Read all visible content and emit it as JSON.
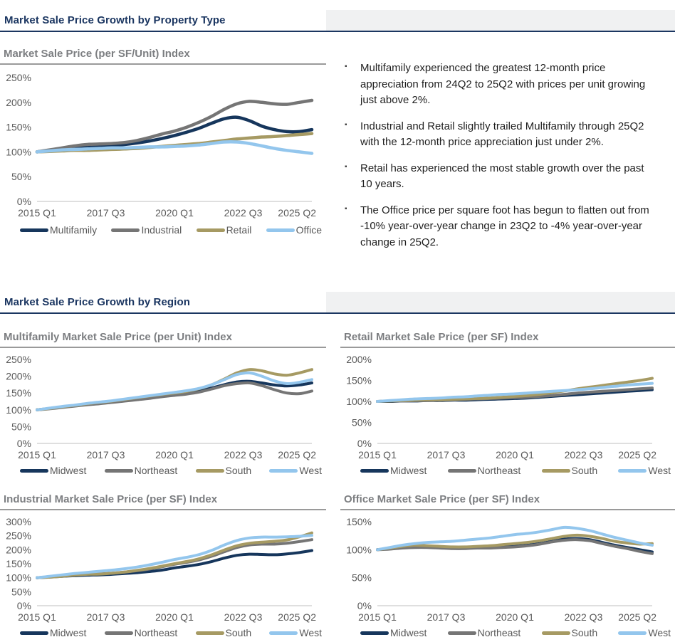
{
  "colors": {
    "header_navy": "#1B3661",
    "subtitle_gray": "#7C7E81",
    "axis_text": "#595959",
    "axis_line": "#BFBFBF",
    "header_band": "#F0F1F2",
    "series_navy": "#16365C",
    "series_gray": "#757575",
    "series_olive": "#A69A63",
    "series_lightblue": "#93C6ED"
  },
  "section1": {
    "title": "Market Sale Price Growth by Property Type",
    "bullet_marker": "▪",
    "bullets": [
      "Multifamily experienced the greatest 12-month price appreciation from 24Q2 to 25Q2 with prices per unit growing just above 2%.",
      "Industrial and Retail slightly trailed Multifamily through 25Q2 with the 12-month price appreciation just under 2%.",
      "Retail has experienced the most stable growth over the past 10 years.",
      "The Office price per square foot has begun to flatten out from -10% year-over-year change in 23Q2 to -4% year-over-year change in 25Q2."
    ]
  },
  "section2": {
    "title": "Market Sale Price Growth by Region"
  },
  "chart_data": [
    {
      "id": "overall-index",
      "type": "line",
      "size": "large",
      "title": "Market Sale Price (per SF/Unit) Index",
      "xlabel": "",
      "ylabel": "",
      "x_ticks": [
        "2015 Q1",
        "2017 Q3",
        "2020 Q1",
        "2022 Q3",
        "2025 Q2"
      ],
      "y_ticks": [
        "0%",
        "50%",
        "100%",
        "150%",
        "200%",
        "250%"
      ],
      "ylim": [
        0,
        250
      ],
      "grid": false,
      "legend_position": "bottom",
      "series": [
        {
          "name": "Multifamily",
          "color": "#16365C",
          "values": [
            100,
            103,
            106,
            108,
            110,
            112,
            113,
            115,
            118,
            122,
            127,
            133,
            140,
            148,
            158,
            167,
            170,
            163,
            152,
            145,
            141,
            141,
            145
          ]
        },
        {
          "name": "Industrial",
          "color": "#757575",
          "values": [
            100,
            104,
            108,
            112,
            115,
            116,
            117,
            119,
            123,
            129,
            136,
            142,
            150,
            160,
            172,
            186,
            197,
            202,
            200,
            197,
            196,
            200,
            204
          ]
        },
        {
          "name": "Retail",
          "color": "#A69A63",
          "values": [
            100,
            101,
            102,
            103,
            103,
            104,
            105,
            106,
            107,
            109,
            111,
            113,
            115,
            117,
            120,
            123,
            126,
            128,
            130,
            131,
            133,
            135,
            137
          ]
        },
        {
          "name": "Office",
          "color": "#93C6ED",
          "values": [
            100,
            102,
            104,
            105,
            106,
            107,
            108,
            108,
            109,
            110,
            110,
            111,
            112,
            114,
            117,
            120,
            120,
            117,
            112,
            107,
            103,
            100,
            97
          ]
        }
      ]
    },
    {
      "id": "multifamily-region",
      "type": "line",
      "size": "small",
      "title": "Multifamily Market Sale Price (per Unit) Index",
      "xlabel": "",
      "ylabel": "",
      "x_ticks": [
        "2015 Q1",
        "2017 Q3",
        "2020 Q1",
        "2022 Q3",
        "2025 Q2"
      ],
      "y_ticks": [
        "0%",
        "50%",
        "100%",
        "150%",
        "200%",
        "250%"
      ],
      "ylim": [
        0,
        250
      ],
      "grid": false,
      "legend_position": "bottom",
      "series": [
        {
          "name": "Midwest",
          "color": "#16365C",
          "values": [
            100,
            104,
            108,
            112,
            116,
            120,
            124,
            128,
            132,
            137,
            142,
            146,
            150,
            156,
            165,
            175,
            183,
            185,
            180,
            174,
            171,
            174,
            180
          ]
        },
        {
          "name": "Northeast",
          "color": "#757575",
          "values": [
            100,
            103,
            107,
            111,
            115,
            118,
            122,
            126,
            130,
            134,
            139,
            143,
            147,
            153,
            162,
            172,
            178,
            180,
            172,
            160,
            150,
            148,
            156
          ]
        },
        {
          "name": "South",
          "color": "#A69A63",
          "values": [
            100,
            104,
            109,
            113,
            118,
            122,
            126,
            131,
            136,
            141,
            146,
            150,
            155,
            163,
            175,
            192,
            210,
            220,
            216,
            207,
            203,
            210,
            220
          ]
        },
        {
          "name": "West",
          "color": "#93C6ED",
          "values": [
            100,
            105,
            110,
            114,
            119,
            123,
            127,
            132,
            137,
            142,
            147,
            152,
            157,
            164,
            175,
            190,
            205,
            210,
            200,
            186,
            178,
            182,
            190
          ]
        }
      ]
    },
    {
      "id": "retail-region",
      "type": "line",
      "size": "small",
      "title": "Retail Market Sale Price (per SF) Index",
      "xlabel": "",
      "ylabel": "",
      "x_ticks": [
        "2015 Q1",
        "2017 Q3",
        "2020 Q1",
        "2022 Q3",
        "2025 Q2"
      ],
      "y_ticks": [
        "0%",
        "50%",
        "100%",
        "150%",
        "200%"
      ],
      "ylim": [
        0,
        200
      ],
      "grid": false,
      "legend_position": "bottom",
      "series": [
        {
          "name": "Midwest",
          "color": "#16365C",
          "values": [
            100,
            100,
            101,
            101,
            102,
            102,
            103,
            103,
            104,
            105,
            106,
            107,
            108,
            110,
            112,
            114,
            116,
            118,
            120,
            122,
            124,
            126,
            128
          ]
        },
        {
          "name": "Northeast",
          "color": "#757575",
          "values": [
            100,
            101,
            101,
            102,
            102,
            103,
            104,
            105,
            106,
            107,
            108,
            109,
            110,
            112,
            114,
            117,
            120,
            122,
            124,
            126,
            128,
            130,
            132
          ]
        },
        {
          "name": "South",
          "color": "#A69A63",
          "values": [
            100,
            101,
            102,
            103,
            104,
            104,
            105,
            106,
            107,
            108,
            110,
            112,
            114,
            117,
            121,
            125,
            130,
            134,
            138,
            142,
            146,
            150,
            155
          ]
        },
        {
          "name": "West",
          "color": "#93C6ED",
          "values": [
            100,
            102,
            104,
            106,
            107,
            108,
            110,
            111,
            113,
            115,
            117,
            118,
            120,
            122,
            124,
            126,
            128,
            130,
            133,
            136,
            139,
            141,
            143
          ]
        }
      ]
    },
    {
      "id": "industrial-region",
      "type": "line",
      "size": "small",
      "title": "Industrial Market Sale Price (per SF) Index",
      "xlabel": "",
      "ylabel": "",
      "x_ticks": [
        "2015 Q1",
        "2017 Q3",
        "2020 Q1",
        "2022 Q3",
        "2025 Q2"
      ],
      "y_ticks": [
        "0%",
        "50%",
        "100%",
        "150%",
        "200%",
        "250%",
        "300%"
      ],
      "ylim": [
        0,
        300
      ],
      "grid": false,
      "legend_position": "bottom",
      "series": [
        {
          "name": "Midwest",
          "color": "#16365C",
          "values": [
            100,
            102,
            105,
            107,
            109,
            110,
            112,
            115,
            118,
            122,
            127,
            135,
            141,
            148,
            158,
            170,
            180,
            184,
            183,
            182,
            185,
            190,
            197
          ]
        },
        {
          "name": "Northeast",
          "color": "#757575",
          "values": [
            100,
            103,
            106,
            110,
            113,
            114,
            116,
            120,
            125,
            131,
            139,
            148,
            155,
            164,
            177,
            193,
            208,
            217,
            220,
            220,
            223,
            229,
            236
          ]
        },
        {
          "name": "South",
          "color": "#A69A63",
          "values": [
            100,
            102,
            105,
            109,
            112,
            113,
            116,
            120,
            126,
            133,
            141,
            150,
            158,
            168,
            182,
            199,
            214,
            223,
            227,
            230,
            235,
            246,
            260
          ]
        },
        {
          "name": "West",
          "color": "#93C6ED",
          "values": [
            100,
            105,
            110,
            115,
            119,
            123,
            127,
            132,
            138,
            146,
            155,
            165,
            173,
            183,
            198,
            217,
            233,
            242,
            245,
            245,
            246,
            248,
            251
          ]
        }
      ]
    },
    {
      "id": "office-region",
      "type": "line",
      "size": "small",
      "title": "Office Market Sale Price (per SF) Index",
      "xlabel": "",
      "ylabel": "",
      "x_ticks": [
        "2015 Q1",
        "2017 Q3",
        "2020 Q1",
        "2022 Q3",
        "2025 Q2"
      ],
      "y_ticks": [
        "0%",
        "50%",
        "100%",
        "150%"
      ],
      "ylim": [
        0,
        150
      ],
      "grid": false,
      "legend_position": "bottom",
      "series": [
        {
          "name": "Midwest",
          "color": "#16365C",
          "values": [
            100,
            102,
            104,
            105,
            106,
            104,
            103,
            103,
            104,
            104,
            105,
            106,
            108,
            111,
            115,
            119,
            120,
            118,
            113,
            108,
            104,
            100,
            96
          ]
        },
        {
          "name": "Northeast",
          "color": "#757575",
          "values": [
            100,
            101,
            103,
            104,
            104,
            103,
            102,
            102,
            103,
            103,
            104,
            105,
            107,
            110,
            114,
            117,
            118,
            116,
            111,
            106,
            102,
            97,
            93
          ]
        },
        {
          "name": "South",
          "color": "#A69A63",
          "values": [
            100,
            103,
            106,
            108,
            107,
            106,
            105,
            105,
            106,
            107,
            109,
            111,
            113,
            116,
            120,
            124,
            126,
            124,
            120,
            115,
            112,
            110,
            111
          ]
        },
        {
          "name": "West",
          "color": "#93C6ED",
          "values": [
            100,
            104,
            108,
            111,
            113,
            114,
            115,
            117,
            119,
            121,
            124,
            127,
            129,
            132,
            136,
            140,
            138,
            134,
            128,
            122,
            117,
            112,
            108
          ]
        }
      ]
    }
  ]
}
